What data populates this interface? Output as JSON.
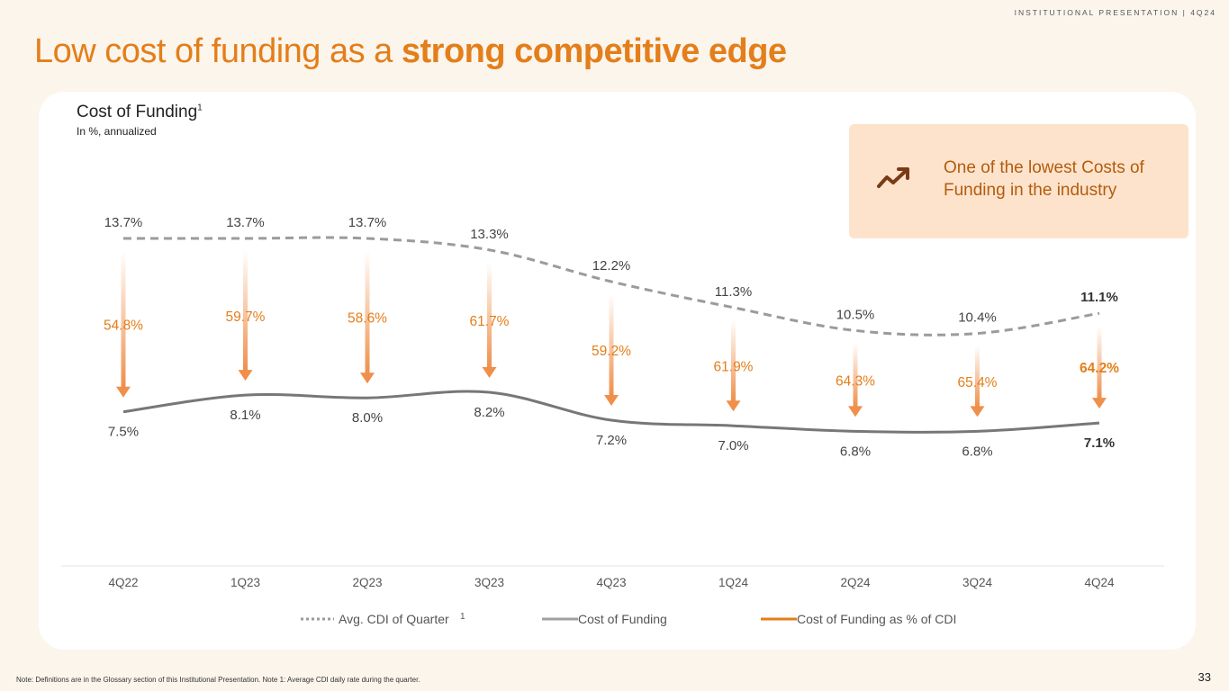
{
  "header": {
    "tag": "INSTITUTIONAL PRESENTATION | 4Q24"
  },
  "title": {
    "regular": "Low cost of funding as a ",
    "strong": "strong competitive edge"
  },
  "callout": {
    "text": "One of the lowest Costs of Funding in the industry",
    "icon": "trending-up-icon"
  },
  "colors": {
    "accent": "#e47e1a",
    "cdi_line": "#9b9b9b",
    "cof_line": "#777777",
    "arrow": "#ef8f4a"
  },
  "chart_data": {
    "type": "line",
    "title": "Cost of Funding",
    "title_sup": "1",
    "subtitle": "In %, annualized",
    "categories": [
      "4Q22",
      "1Q23",
      "2Q23",
      "3Q23",
      "4Q23",
      "1Q24",
      "2Q24",
      "3Q24",
      "4Q24"
    ],
    "series": [
      {
        "name": "Avg. CDI of Quarter",
        "name_sup": "1",
        "style": "dashed",
        "values": [
          13.7,
          13.7,
          13.7,
          13.3,
          12.2,
          11.3,
          10.5,
          10.4,
          11.1
        ],
        "labels": [
          "13.7%",
          "13.7%",
          "13.7%",
          "13.3%",
          "12.2%",
          "11.3%",
          "10.5%",
          "10.4%",
          "11.1%"
        ]
      },
      {
        "name": "Cost of Funding",
        "style": "solid",
        "values": [
          7.5,
          8.1,
          8.0,
          8.2,
          7.2,
          7.0,
          6.8,
          6.8,
          7.1
        ],
        "labels": [
          "7.5%",
          "8.1%",
          "8.0%",
          "8.2%",
          "7.2%",
          "7.0%",
          "6.8%",
          "6.8%",
          "7.1%"
        ]
      },
      {
        "name": "Cost of Funding as % of CDI",
        "style": "arrow",
        "values": [
          54.8,
          59.7,
          58.6,
          61.7,
          59.2,
          61.9,
          64.3,
          65.4,
          64.2
        ],
        "labels": [
          "54.8%",
          "59.7%",
          "58.6%",
          "61.7%",
          "59.2%",
          "61.9%",
          "64.3%",
          "65.4%",
          "64.2%"
        ]
      }
    ],
    "ylim": [
      0,
      16
    ],
    "legend": "bottom-center"
  },
  "footnote": "Note: Definitions are in the Glossary section of this Institutional Presentation. Note 1: Average CDI daily rate during the quarter.",
  "page_number": "33"
}
